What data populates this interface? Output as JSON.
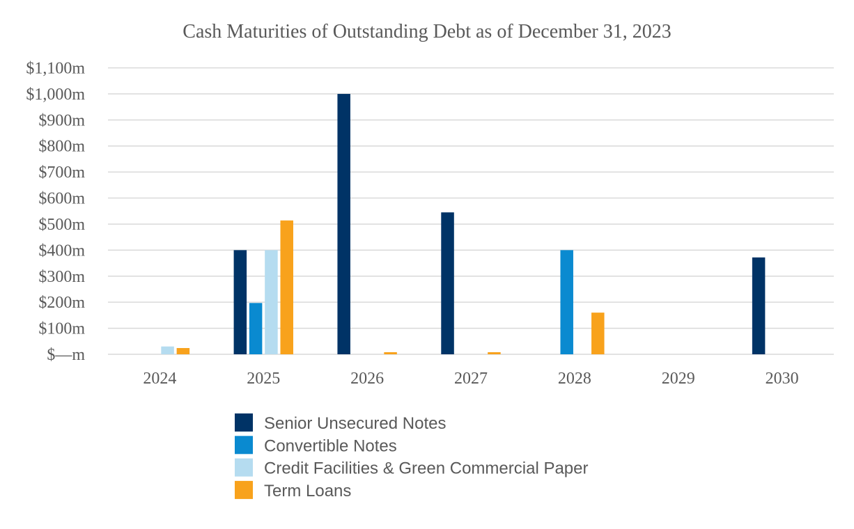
{
  "chart_data": {
    "type": "bar",
    "title": "Cash Maturities of Outstanding Debt as of December 31, 2023",
    "xlabel": "",
    "ylabel": "",
    "categories": [
      "2024",
      "2025",
      "2026",
      "2027",
      "2028",
      "2029",
      "2030"
    ],
    "series": [
      {
        "name": "Senior Unsecured Notes",
        "color": "#003366",
        "values": [
          0,
          400,
          1000,
          545,
          0,
          0,
          372
        ]
      },
      {
        "name": "Convertible Notes",
        "color": "#0a8ad0",
        "values": [
          0,
          197,
          0,
          0,
          400,
          0,
          0
        ]
      },
      {
        "name": "Credit Facilities & Green Commercial Paper",
        "color": "#b5dcf0",
        "values": [
          30,
          400,
          0,
          0,
          0,
          0,
          0
        ]
      },
      {
        "name": "Term Loans",
        "color": "#f8a21c",
        "values": [
          24,
          514,
          8,
          8,
          160,
          0,
          0
        ]
      }
    ],
    "ylim": [
      0,
      1100
    ],
    "yticks": [
      0,
      100,
      200,
      300,
      400,
      500,
      600,
      700,
      800,
      900,
      1000,
      1100
    ],
    "ytick_labels": [
      "$—m",
      "$100m",
      "$200m",
      "$300m",
      "$400m",
      "$500m",
      "$600m",
      "$700m",
      "$800m",
      "$900m",
      "$1,000m",
      "$1,100m"
    ],
    "grid": true,
    "legend_position": "bottom"
  }
}
